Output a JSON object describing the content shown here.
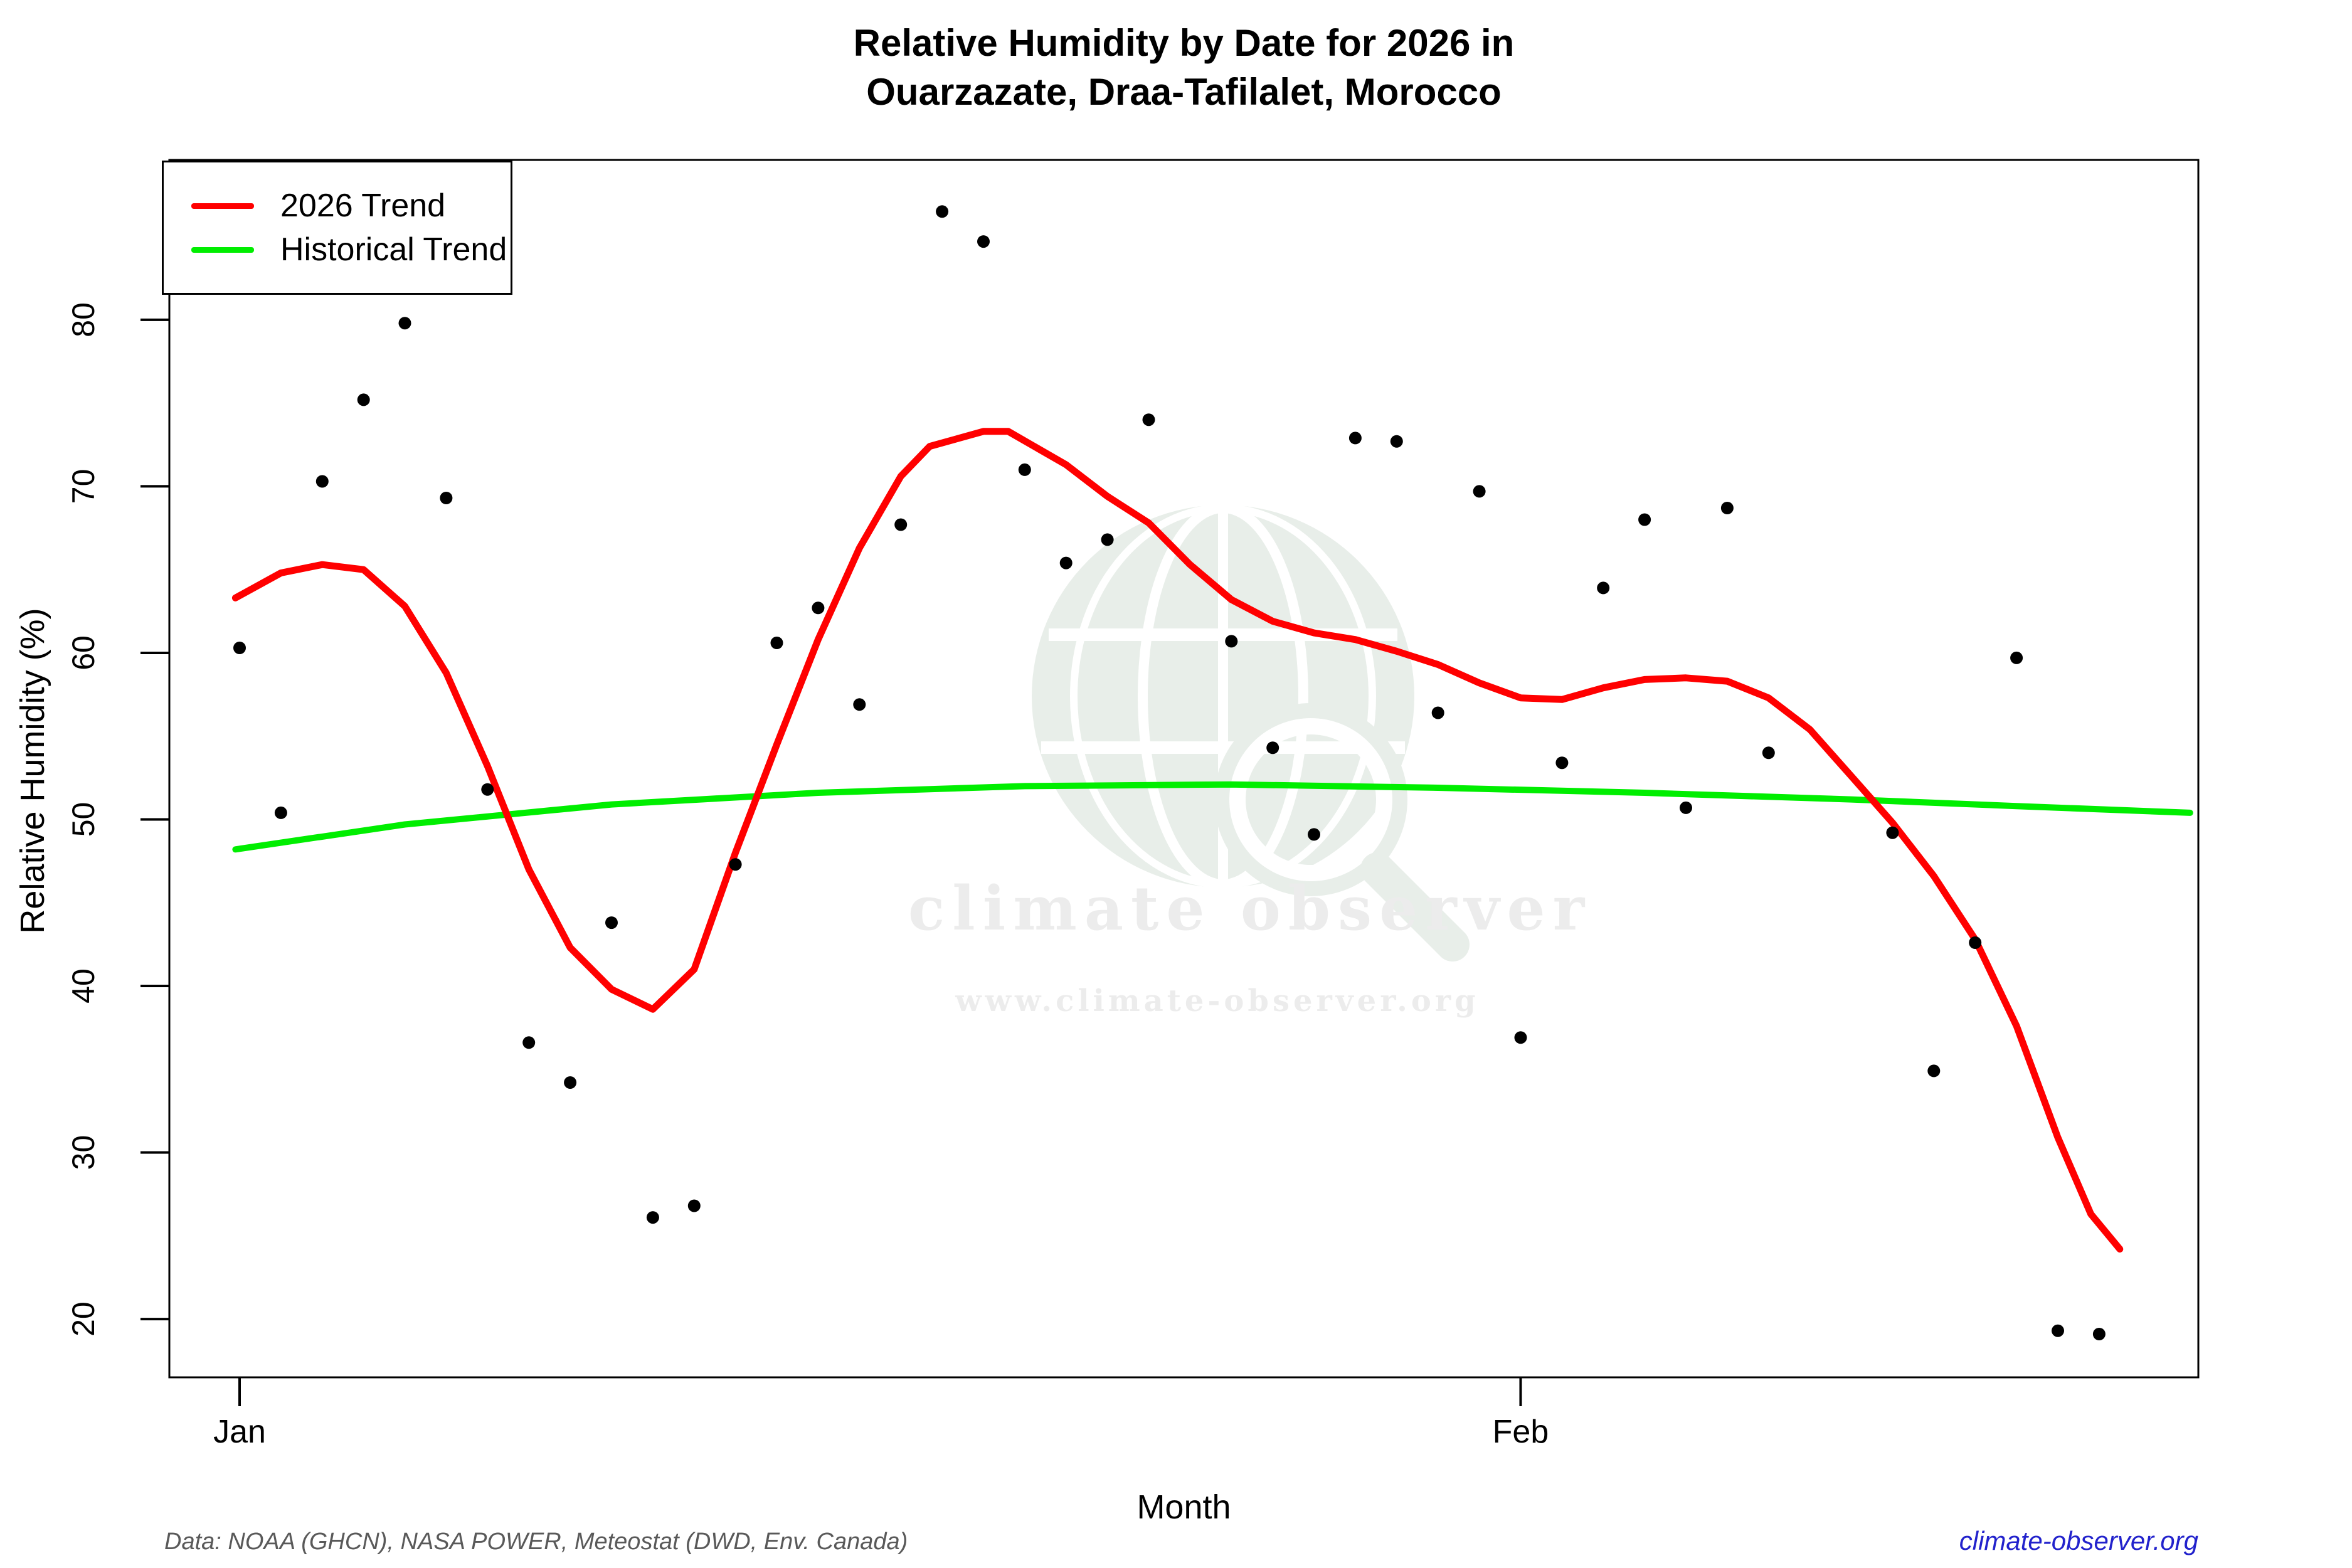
{
  "title": {
    "line1": "Relative Humidity by Date for 2026 in",
    "line2": "Ouarzazate, Draa-Tafilalet, Morocco"
  },
  "legend": {
    "items": [
      {
        "label": "2026 Trend",
        "color": "#ff0000"
      },
      {
        "label": "Historical Trend",
        "color": "#00ee00"
      }
    ]
  },
  "footer": {
    "source": "Data: NOAA (GHCN), NASA POWER, Meteostat (DWD, Env. Canada)",
    "site": "climate-observer.org"
  },
  "watermark": {
    "brand": "climate observer",
    "url": "www.climate-observer.org"
  },
  "colors": {
    "trend_2026": "#ff0000",
    "trend_historical": "#00ee00",
    "points": "#000000",
    "axis": "#000000",
    "footer_text": "#595959",
    "link": "#2222cc",
    "watermark_text": "#ececec",
    "watermark_globe": "#e8eee9"
  },
  "chart_data": {
    "type": "scatter",
    "title": "Relative Humidity by Date for 2026 in Ouarzazate, Draa-Tafilalet, Morocco",
    "xlabel": "Month",
    "ylabel": "Relative Humidity (%)",
    "grid": false,
    "legend_position": "topleft",
    "x_axis": {
      "unit": "day of year (Jan 1 = 1)",
      "range": [
        -0.7,
        48.4
      ],
      "ticks": [
        {
          "label": "Jan",
          "day": 1
        },
        {
          "label": "Feb",
          "day": 32
        }
      ]
    },
    "y_axis": {
      "range": [
        16.5,
        89.6
      ],
      "ticks": [
        20,
        30,
        40,
        50,
        60,
        70,
        80
      ]
    },
    "points": [
      [
        1,
        60.3
      ],
      [
        2,
        50.4
      ],
      [
        3,
        70.3
      ],
      [
        4,
        75.2
      ],
      [
        5,
        79.8
      ],
      [
        6,
        69.3
      ],
      [
        7,
        51.8
      ],
      [
        8,
        36.6
      ],
      [
        9,
        34.2
      ],
      [
        10,
        43.8
      ],
      [
        11,
        26.1
      ],
      [
        12,
        26.8
      ],
      [
        13,
        47.3
      ],
      [
        14,
        60.6
      ],
      [
        15,
        62.7
      ],
      [
        16,
        56.9
      ],
      [
        17,
        67.7
      ],
      [
        18,
        86.5
      ],
      [
        19,
        84.7
      ],
      [
        20,
        71.0
      ],
      [
        21,
        65.4
      ],
      [
        22,
        66.8
      ],
      [
        23,
        74.0
      ],
      [
        25,
        60.7
      ],
      [
        26,
        54.3
      ],
      [
        27,
        49.1
      ],
      [
        28,
        72.9
      ],
      [
        29,
        72.7
      ],
      [
        30,
        56.4
      ],
      [
        31,
        69.7
      ],
      [
        32,
        36.9
      ],
      [
        33,
        53.4
      ],
      [
        34,
        63.9
      ],
      [
        35,
        68.0
      ],
      [
        36,
        50.7
      ],
      [
        37,
        68.7
      ],
      [
        38,
        54.0
      ],
      [
        41,
        49.2
      ],
      [
        42,
        34.9
      ],
      [
        43,
        42.6
      ],
      [
        44,
        59.7
      ],
      [
        45,
        19.3
      ],
      [
        46,
        19.1
      ]
    ],
    "series": [
      {
        "name": "2026 Trend",
        "type": "line",
        "color": "#ff0000",
        "points": [
          [
            0.9,
            63.3
          ],
          [
            2,
            64.8
          ],
          [
            3,
            65.3
          ],
          [
            4,
            65.0
          ],
          [
            5,
            62.8
          ],
          [
            6,
            58.8
          ],
          [
            7,
            53.2
          ],
          [
            8,
            47.0
          ],
          [
            9,
            42.3
          ],
          [
            10,
            39.8
          ],
          [
            11,
            38.6
          ],
          [
            12,
            41.0
          ],
          [
            13,
            48.0
          ],
          [
            14,
            54.5
          ],
          [
            15,
            60.8
          ],
          [
            16,
            66.3
          ],
          [
            17,
            70.6
          ],
          [
            17.7,
            72.4
          ],
          [
            19,
            73.3
          ],
          [
            19.6,
            73.3
          ],
          [
            21,
            71.3
          ],
          [
            22,
            69.4
          ],
          [
            23,
            67.8
          ],
          [
            24,
            65.3
          ],
          [
            25,
            63.2
          ],
          [
            26,
            61.9
          ],
          [
            27,
            61.2
          ],
          [
            28,
            60.8
          ],
          [
            29,
            60.1
          ],
          [
            30,
            59.3
          ],
          [
            31,
            58.2
          ],
          [
            32,
            57.3
          ],
          [
            33,
            57.2
          ],
          [
            34,
            57.9
          ],
          [
            35,
            58.4
          ],
          [
            36,
            58.5
          ],
          [
            37,
            58.3
          ],
          [
            38,
            57.3
          ],
          [
            39,
            55.4
          ],
          [
            40,
            52.6
          ],
          [
            41,
            49.8
          ],
          [
            42,
            46.6
          ],
          [
            43,
            42.8
          ],
          [
            44,
            37.6
          ],
          [
            45,
            30.9
          ],
          [
            45.8,
            26.3
          ],
          [
            46.5,
            24.2
          ]
        ]
      },
      {
        "name": "Historical Trend",
        "type": "line",
        "color": "#00ee00",
        "points": [
          [
            0.9,
            48.2
          ],
          [
            5,
            49.7
          ],
          [
            10,
            50.9
          ],
          [
            15,
            51.6
          ],
          [
            20,
            52.0
          ],
          [
            25,
            52.1
          ],
          [
            30,
            51.9
          ],
          [
            35,
            51.6
          ],
          [
            40,
            51.2
          ],
          [
            44,
            50.8
          ],
          [
            48.2,
            50.4
          ]
        ]
      }
    ]
  }
}
